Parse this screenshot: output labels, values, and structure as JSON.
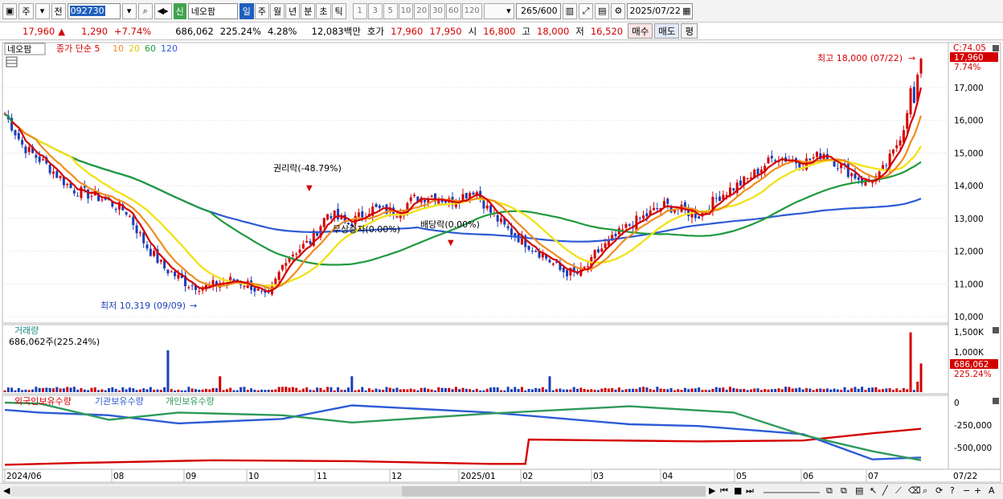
{
  "toolbar": {
    "type_label": "주",
    "prev_label": "전",
    "stock_code": "092730",
    "credit_tag": "신",
    "stock_name": "네오팜",
    "periods": [
      "일",
      "주",
      "월",
      "년",
      "분",
      "초",
      "틱"
    ],
    "active_period": "일",
    "intervals": [
      "1",
      "3",
      "5",
      "10",
      "20",
      "30",
      "60",
      "120"
    ],
    "count": "265",
    "count_max": "/600",
    "date": "2025/07/22"
  },
  "infobar": {
    "price": "17,960",
    "change": "1,290",
    "change_pct": "+7.74%",
    "volume": "686,062",
    "volume_ratio": "225.24%",
    "turnover": "4.28%",
    "amount": "12,083백만",
    "quote_label": "호가",
    "ask": "17,960",
    "bid": "17,950",
    "open_label": "시",
    "open": "16,800",
    "high_label": "고",
    "high": "18,000",
    "low_label": "저",
    "low": "16,520",
    "buy_label": "매수",
    "sell_label": "매도",
    "avg_label": "평"
  },
  "price_panel": {
    "stock_name": "네오팜",
    "legend_main": "종가 단순 5",
    "legend_10": "10",
    "legend_20": "20",
    "legend_60": "60",
    "legend_120": "120",
    "right_top_label": "C:74.05",
    "current_price_tag": "17,960",
    "current_pct_tag": "7.74%",
    "high_annotation": "최고 18,000 (07/22)",
    "low_annotation": "최저 10,319 (09/09)",
    "event_rights": "권리락(-48.79%)",
    "event_bonus": "무상증자(0.00%)",
    "event_dividend": "배당락(0.00%)",
    "y_ticks": [
      "17,000",
      "16,000",
      "15,000",
      "14,000",
      "13,000",
      "12,000",
      "11,000",
      "10,000"
    ]
  },
  "volume_panel": {
    "title": "거래량",
    "info": "686,062주(225.24%)",
    "y_ticks": [
      "1,500K",
      "1,000K"
    ],
    "current_tag": "686,062",
    "pct_tag": "225.24%"
  },
  "holdings_panel": {
    "legend_foreign": "외국인보유수량",
    "legend_inst": "기관보유수량",
    "legend_indiv": "개인보유수량",
    "y_ticks": [
      "0",
      "-250,000",
      "-500,000"
    ]
  },
  "x_axis": {
    "labels": [
      "2024/06",
      "08",
      "09",
      "10",
      "11",
      "12",
      "2025/01",
      "02",
      "03",
      "04",
      "05",
      "06",
      "07"
    ],
    "right_label": "07/22"
  },
  "colors": {
    "up": "#d40000",
    "down": "#1a3fb8",
    "ma5": "#d40000",
    "ma10": "#f08c1e",
    "ma20": "#f2e21b",
    "ma60": "#1f9a3c",
    "ma120": "#2d5bd6",
    "foreign": "#d40000",
    "inst": "#2d5bd6",
    "indiv": "#2e9a5a"
  }
}
